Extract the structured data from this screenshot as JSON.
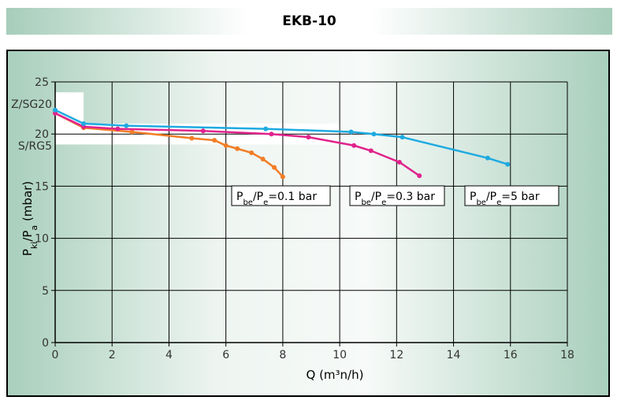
{
  "title": "EKB-10",
  "chart_data": {
    "type": "line",
    "xlabel": "Q (m³n/h)",
    "ylabel_parts": [
      "P",
      "ki",
      "/P",
      "a",
      " (mbar)"
    ],
    "xlim": [
      0,
      18
    ],
    "ylim": [
      0,
      25
    ],
    "xticks": [
      0,
      2,
      4,
      6,
      8,
      10,
      12,
      14,
      16,
      18
    ],
    "yticks": [
      0,
      5,
      10,
      15,
      20,
      25
    ],
    "grid": true,
    "bands": [
      {
        "label": "Z/SG20",
        "y_range": [
          21,
          24
        ],
        "x_to": 1
      },
      {
        "label": "S/RG5",
        "y_range": [
          19,
          21
        ],
        "x_to": 10
      }
    ],
    "series": [
      {
        "name": "Pbe/Pe=0.1 bar",
        "name_parts": [
          "P",
          "be",
          "/P",
          "e",
          "=0.1 bar"
        ],
        "color": "#f27d26",
        "x": [
          0,
          1.0,
          2.7,
          4.8,
          5.6,
          6.0,
          6.4,
          6.9,
          7.3,
          7.7,
          8.0
        ],
        "y": [
          22.0,
          20.6,
          20.2,
          19.6,
          19.4,
          18.9,
          18.6,
          18.2,
          17.6,
          16.8,
          15.9
        ]
      },
      {
        "name": "Pbe/Pe=0.3 bar",
        "name_parts": [
          "P",
          "be",
          "/P",
          "e",
          "=0.3 bar"
        ],
        "color": "#e1238c",
        "x": [
          0,
          1.0,
          2.2,
          5.2,
          7.6,
          8.9,
          10.5,
          11.1,
          12.1,
          12.8
        ],
        "y": [
          22.0,
          20.7,
          20.5,
          20.3,
          20.0,
          19.7,
          18.9,
          18.4,
          17.3,
          16.0
        ]
      },
      {
        "name": "Pbe/Pe=5 bar",
        "name_parts": [
          "P",
          "be",
          "/P",
          "e",
          "=5 bar"
        ],
        "color": "#1eaae1",
        "x": [
          0,
          1.0,
          2.5,
          7.4,
          10.4,
          11.2,
          12.2,
          15.2,
          15.9
        ],
        "y": [
          22.3,
          21.0,
          20.8,
          20.5,
          20.2,
          20.0,
          19.7,
          17.7,
          17.1
        ]
      }
    ]
  }
}
